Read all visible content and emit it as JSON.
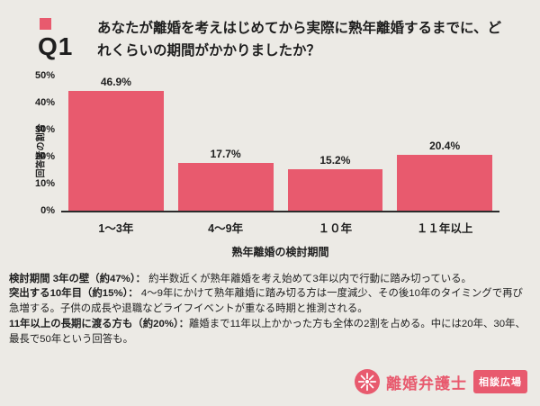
{
  "page": {
    "background_color": "#eceae5",
    "accent_color": "#e85a6e",
    "text_color": "#1e1e1e"
  },
  "header": {
    "q_label": "Q1",
    "question": "あなたが離婚を考えはじめてから実際に熟年離婚するまでに、どれくらいの期間がかかりましたか？"
  },
  "chart_data": {
    "type": "bar",
    "categories": [
      "1〜3年",
      "4〜9年",
      "１０年",
      "１１年以上"
    ],
    "values": [
      46.9,
      17.7,
      15.2,
      20.4
    ],
    "value_labels": [
      "46.9%",
      "17.7%",
      "15.2%",
      "20.4%"
    ],
    "title": "",
    "xlabel": "熟年離婚の検討期間",
    "ylabel": "回答者の割合",
    "ylim": [
      0,
      50
    ],
    "yticks": [
      "50%",
      "40%",
      "30%",
      "20%",
      "10%",
      "0%"
    ],
    "grid": false,
    "legend": false,
    "bar_color": "#e85a6e"
  },
  "analysis": [
    {
      "lead": "検討期間 3年の壁（約47%）：",
      "text": " 約半数近くが熟年離婚を考え始めて3年以内で行動に踏み切っている。"
    },
    {
      "lead": "突出する10年目（約15%）：",
      "text": " 4〜9年にかけて熟年離婚に踏み切る方は一度減少、その後10年のタイミングで再び急増する。子供の成長や退職などライフイベントが重なる時期と推測される。"
    },
    {
      "lead": "11年以上の長期に渡る方も（約20%）：",
      "text": "離婚まで11年以上かかった方も全体の2割を占める。中には20年、30年、最長で50年という回答も。"
    }
  ],
  "footer": {
    "brand": "離婚弁護士",
    "badge": "相談広場"
  }
}
